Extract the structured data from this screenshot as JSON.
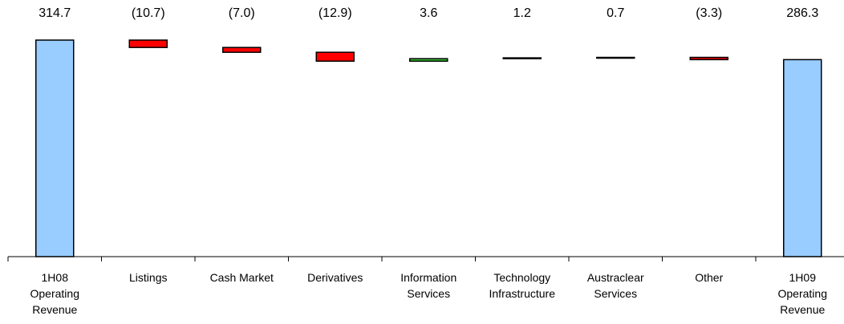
{
  "chart_data": {
    "type": "waterfall",
    "categories": [
      "1H08\nOperating\nRevenue",
      "Listings",
      "Cash Market",
      "Derivatives",
      "Information\nServices",
      "Technology\nInfrastructure",
      "Austraclear\nServices",
      "Other",
      "1H09\nOperating\nRevenue"
    ],
    "values": [
      314.7,
      -10.7,
      -7.0,
      -12.9,
      3.6,
      1.2,
      0.7,
      -3.3,
      286.3
    ],
    "value_labels": [
      "314.7",
      "(10.7)",
      "(7.0)",
      "(12.9)",
      "3.6",
      "1.2",
      "0.7",
      "(3.3)",
      "286.3"
    ],
    "colors": [
      "#99ccff",
      "#ff0000",
      "#ff0000",
      "#ff0000",
      "#33cc33",
      "#33cc33",
      "#33cc33",
      "#ff0000",
      "#99ccff"
    ]
  }
}
